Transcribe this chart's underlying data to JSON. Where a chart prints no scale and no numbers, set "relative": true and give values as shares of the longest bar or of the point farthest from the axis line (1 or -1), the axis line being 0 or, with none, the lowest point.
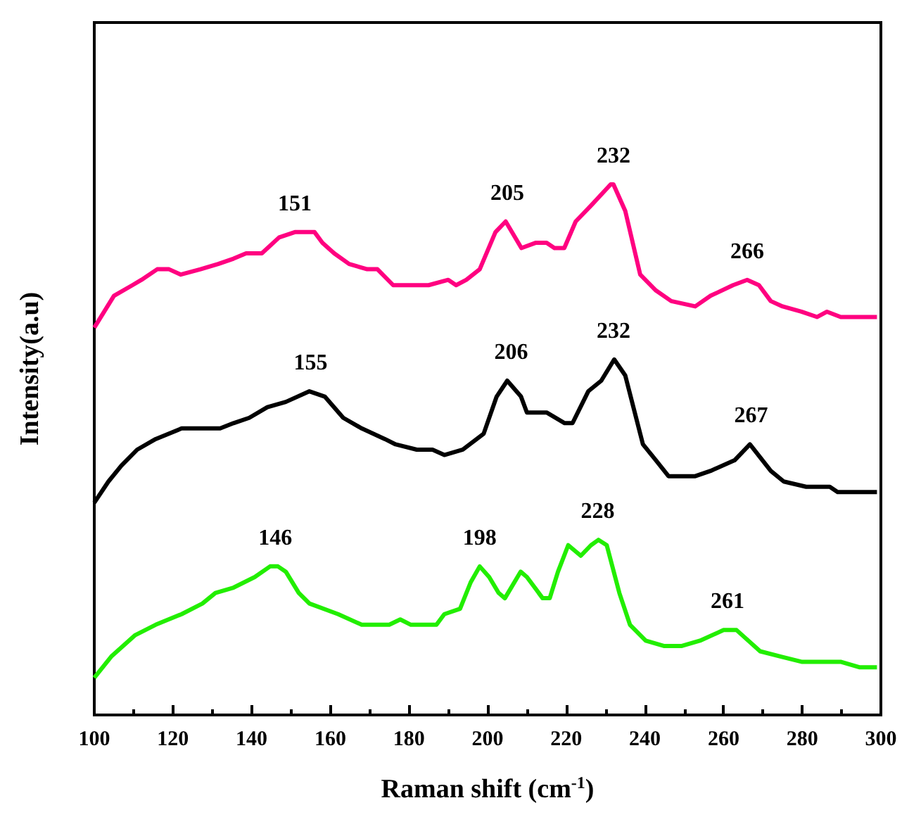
{
  "chart_data": {
    "type": "line",
    "xlabel": "Raman shift (cm$^{-1}$)",
    "ylabel": "Intensity(a.u)",
    "relative": true,
    "xlim": [
      100,
      300
    ],
    "xticks": [
      100,
      120,
      140,
      160,
      180,
      200,
      220,
      240,
      260,
      280,
      300
    ],
    "grid": false,
    "marker": "none",
    "line_style": "solid",
    "series": [
      {
        "color": "#ff0080",
        "x": [
          100,
          105,
          109.7,
          112,
          116,
          119,
          122,
          127,
          131.5,
          135.4,
          138.6,
          142.6,
          147,
          151,
          154,
          156,
          158,
          161,
          164.8,
          169.4,
          172,
          176,
          180.5,
          185,
          190,
          192,
          194.6,
          198,
          202,
          204.6,
          208.6,
          212.3,
          215,
          217,
          219.5,
          222.4,
          226.3,
          231.3,
          232,
          235,
          238.8,
          242.8,
          246.7,
          252.8,
          256.7,
          262.4,
          266,
          269,
          272,
          275,
          279.8,
          283.8,
          286.3,
          289.8,
          294.6,
          299
        ],
        "values": [
          0.73,
          0.79,
          0.81,
          0.82,
          0.84,
          0.84,
          0.83,
          0.84,
          0.85,
          0.86,
          0.87,
          0.87,
          0.9,
          0.91,
          0.91,
          0.91,
          0.89,
          0.87,
          0.85,
          0.84,
          0.84,
          0.81,
          0.81,
          0.81,
          0.82,
          0.81,
          0.82,
          0.84,
          0.91,
          0.93,
          0.88,
          0.89,
          0.89,
          0.88,
          0.88,
          0.93,
          0.96,
          1.0,
          1.0,
          0.95,
          0.83,
          0.8,
          0.78,
          0.77,
          0.79,
          0.81,
          0.82,
          0.81,
          0.78,
          0.77,
          0.76,
          0.75,
          0.76,
          0.75,
          0.75,
          0.75
        ]
      },
      {
        "color": "#000000",
        "x": [
          100,
          103.6,
          106.9,
          110.9,
          115.6,
          122.2,
          127.5,
          132,
          135.4,
          139.4,
          144,
          148.7,
          154.7,
          158.6,
          163.3,
          168,
          173.9,
          176.6,
          182,
          186,
          189,
          193.7,
          199,
          202.3,
          205,
          208.5,
          210,
          215,
          219.6,
          221.6,
          225.6,
          228.9,
          232.2,
          235,
          239.5,
          242.8,
          246,
          252.8,
          256.7,
          262.8,
          266.7,
          272,
          275.3,
          281,
          287,
          289,
          294.5,
          299
        ],
        "values": [
          0.4,
          0.44,
          0.47,
          0.5,
          0.52,
          0.54,
          0.54,
          0.54,
          0.55,
          0.56,
          0.58,
          0.59,
          0.61,
          0.6,
          0.56,
          0.54,
          0.52,
          0.51,
          0.5,
          0.5,
          0.49,
          0.5,
          0.53,
          0.6,
          0.63,
          0.6,
          0.57,
          0.57,
          0.55,
          0.55,
          0.61,
          0.63,
          0.67,
          0.64,
          0.51,
          0.48,
          0.45,
          0.45,
          0.46,
          0.48,
          0.51,
          0.46,
          0.44,
          0.43,
          0.43,
          0.42,
          0.42,
          0.42
        ]
      },
      {
        "color": "#22ee00",
        "x": [
          100,
          104.3,
          110.3,
          115.6,
          122.2,
          127.5,
          130.8,
          135.4,
          140.8,
          144.7,
          146.7,
          148.7,
          152,
          154.7,
          162,
          168,
          172,
          175,
          177.8,
          180.5,
          184.4,
          187,
          189,
          193,
          195.7,
          198,
          200.4,
          202.8,
          204.4,
          208.4,
          210,
          214,
          215.8,
          217.9,
          220.5,
          223.7,
          226.3,
          228.2,
          230.3,
          233.5,
          236.2,
          240.2,
          244.8,
          249.4,
          254,
          260,
          263.3,
          269.3,
          274.6,
          280,
          283.2,
          289.9,
          294.5,
          299
        ],
        "values": [
          0.07,
          0.11,
          0.15,
          0.17,
          0.19,
          0.21,
          0.23,
          0.24,
          0.26,
          0.28,
          0.28,
          0.27,
          0.23,
          0.21,
          0.19,
          0.17,
          0.17,
          0.17,
          0.18,
          0.17,
          0.17,
          0.17,
          0.19,
          0.2,
          0.25,
          0.28,
          0.26,
          0.23,
          0.22,
          0.27,
          0.26,
          0.22,
          0.22,
          0.27,
          0.32,
          0.3,
          0.32,
          0.33,
          0.32,
          0.23,
          0.17,
          0.14,
          0.13,
          0.13,
          0.14,
          0.16,
          0.16,
          0.12,
          0.11,
          0.1,
          0.1,
          0.1,
          0.09,
          0.09
        ]
      }
    ],
    "annotations": [
      {
        "text": "151",
        "x": 151,
        "y": 0.91
      },
      {
        "text": "205",
        "x": 205,
        "y": 0.93
      },
      {
        "text": "232",
        "x": 232,
        "y": 1.0
      },
      {
        "text": "266",
        "x": 266,
        "y": 0.82
      },
      {
        "text": "155",
        "x": 155,
        "y": 0.61
      },
      {
        "text": "206",
        "x": 206,
        "y": 0.63
      },
      {
        "text": "232",
        "x": 232,
        "y": 0.67
      },
      {
        "text": "267",
        "x": 267,
        "y": 0.51
      },
      {
        "text": "146",
        "x": 146,
        "y": 0.28
      },
      {
        "text": "198",
        "x": 198,
        "y": 0.28
      },
      {
        "text": "228",
        "x": 228,
        "y": 0.33
      },
      {
        "text": "261",
        "x": 261,
        "y": 0.16
      }
    ]
  }
}
